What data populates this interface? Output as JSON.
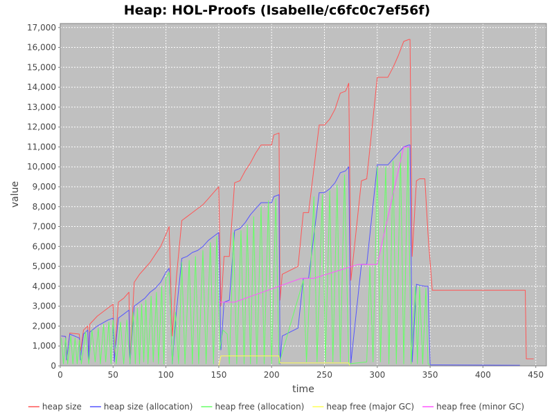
{
  "chart_data": {
    "type": "line",
    "title": "Heap: HOL-Proofs (Isabelle/c6fc0c7ef56f)",
    "xlabel": "time",
    "ylabel": "value",
    "xlim": [
      0,
      460
    ],
    "ylim": [
      0,
      17200
    ],
    "xticks": [
      0,
      50,
      100,
      150,
      200,
      250,
      300,
      350,
      400,
      450
    ],
    "xtick_labels": [
      "0",
      "50",
      "100",
      "150",
      "200",
      "250",
      "300",
      "350",
      "400",
      "450"
    ],
    "yticks": [
      0,
      1000,
      2000,
      3000,
      4000,
      5000,
      6000,
      7000,
      8000,
      9000,
      10000,
      11000,
      12000,
      13000,
      14000,
      15000,
      16000,
      17000
    ],
    "ytick_labels": [
      "0",
      "1,000",
      "2,000",
      "3,000",
      "4,000",
      "5,000",
      "6,000",
      "7,000",
      "8,000",
      "9,000",
      "10,000",
      "11,000",
      "12,000",
      "13,000",
      "14,000",
      "15,000",
      "16,000",
      "17,000"
    ],
    "grid": true,
    "legend_position": "bottom",
    "series": [
      {
        "name": "heap size",
        "color": "#ff5555",
        "points": [
          [
            1,
            1500
          ],
          [
            5,
            1480
          ],
          [
            6,
            300
          ],
          [
            9,
            1650
          ],
          [
            18,
            1600
          ],
          [
            19,
            700
          ],
          [
            22,
            1800
          ],
          [
            26,
            2000
          ],
          [
            27,
            300
          ],
          [
            28,
            2100
          ],
          [
            35,
            2500
          ],
          [
            45,
            2900
          ],
          [
            50,
            3100
          ],
          [
            51,
            200
          ],
          [
            55,
            3200
          ],
          [
            60,
            3400
          ],
          [
            65,
            3700
          ],
          [
            66,
            200
          ],
          [
            70,
            4200
          ],
          [
            75,
            4600
          ],
          [
            80,
            4900
          ],
          [
            85,
            5200
          ],
          [
            90,
            5600
          ],
          [
            95,
            6000
          ],
          [
            100,
            6600
          ],
          [
            103,
            7000
          ],
          [
            106,
            1500
          ],
          [
            110,
            4500
          ],
          [
            115,
            7300
          ],
          [
            120,
            7500
          ],
          [
            125,
            7700
          ],
          [
            130,
            7900
          ],
          [
            135,
            8100
          ],
          [
            140,
            8400
          ],
          [
            145,
            8700
          ],
          [
            150,
            9000
          ],
          [
            152,
            3000
          ],
          [
            155,
            5500
          ],
          [
            160,
            5500
          ],
          [
            165,
            9200
          ],
          [
            170,
            9300
          ],
          [
            175,
            9800
          ],
          [
            180,
            10200
          ],
          [
            185,
            10700
          ],
          [
            190,
            11100
          ],
          [
            200,
            11100
          ],
          [
            202,
            11600
          ],
          [
            207,
            11700
          ],
          [
            208,
            3300
          ],
          [
            210,
            4600
          ],
          [
            225,
            5000
          ],
          [
            230,
            7700
          ],
          [
            235,
            7700
          ],
          [
            245,
            12100
          ],
          [
            250,
            12100
          ],
          [
            255,
            12400
          ],
          [
            260,
            12900
          ],
          [
            265,
            13700
          ],
          [
            270,
            13800
          ],
          [
            273,
            14200
          ],
          [
            275,
            4300
          ],
          [
            285,
            9300
          ],
          [
            290,
            9400
          ],
          [
            300,
            14500
          ],
          [
            310,
            14500
          ],
          [
            315,
            15000
          ],
          [
            320,
            15600
          ],
          [
            325,
            16300
          ],
          [
            330,
            16400
          ],
          [
            331,
            16400
          ],
          [
            333,
            5500
          ],
          [
            337,
            9300
          ],
          [
            340,
            9400
          ],
          [
            345,
            9400
          ],
          [
            348,
            6600
          ],
          [
            352,
            3800
          ],
          [
            440,
            3800
          ],
          [
            441,
            350
          ],
          [
            448,
            350
          ]
        ]
      },
      {
        "name": "heap size (allocation)",
        "color": "#5555ff",
        "points": [
          [
            1,
            1500
          ],
          [
            5,
            1480
          ],
          [
            6,
            300
          ],
          [
            9,
            1600
          ],
          [
            18,
            1400
          ],
          [
            19,
            300
          ],
          [
            22,
            1600
          ],
          [
            26,
            1800
          ],
          [
            27,
            300
          ],
          [
            28,
            1700
          ],
          [
            35,
            2000
          ],
          [
            45,
            2300
          ],
          [
            50,
            2400
          ],
          [
            51,
            200
          ],
          [
            55,
            2400
          ],
          [
            60,
            2600
          ],
          [
            65,
            2800
          ],
          [
            66,
            100
          ],
          [
            70,
            3000
          ],
          [
            75,
            3200
          ],
          [
            80,
            3400
          ],
          [
            85,
            3700
          ],
          [
            90,
            3900
          ],
          [
            95,
            4200
          ],
          [
            100,
            4700
          ],
          [
            103,
            4900
          ],
          [
            106,
            100
          ],
          [
            110,
            2800
          ],
          [
            115,
            5400
          ],
          [
            120,
            5500
          ],
          [
            125,
            5700
          ],
          [
            130,
            5800
          ],
          [
            135,
            6000
          ],
          [
            140,
            6300
          ],
          [
            145,
            6500
          ],
          [
            150,
            6700
          ],
          [
            152,
            800
          ],
          [
            155,
            3200
          ],
          [
            160,
            3300
          ],
          [
            165,
            6800
          ],
          [
            170,
            6900
          ],
          [
            175,
            7200
          ],
          [
            180,
            7600
          ],
          [
            185,
            7900
          ],
          [
            190,
            8200
          ],
          [
            200,
            8200
          ],
          [
            202,
            8500
          ],
          [
            207,
            8600
          ],
          [
            208,
            100
          ],
          [
            210,
            1500
          ],
          [
            225,
            1900
          ],
          [
            230,
            4400
          ],
          [
            235,
            4400
          ],
          [
            245,
            8700
          ],
          [
            250,
            8700
          ],
          [
            255,
            8900
          ],
          [
            260,
            9200
          ],
          [
            265,
            9700
          ],
          [
            270,
            9800
          ],
          [
            273,
            10000
          ],
          [
            275,
            150
          ],
          [
            285,
            5100
          ],
          [
            290,
            5100
          ],
          [
            300,
            10100
          ],
          [
            310,
            10100
          ],
          [
            315,
            10400
          ],
          [
            320,
            10700
          ],
          [
            325,
            11000
          ],
          [
            330,
            11100
          ],
          [
            331,
            11100
          ],
          [
            333,
            200
          ],
          [
            337,
            4100
          ],
          [
            340,
            4050
          ],
          [
            345,
            4000
          ],
          [
            348,
            4000
          ],
          [
            350,
            50
          ],
          [
            432,
            30
          ],
          [
            435,
            30
          ]
        ]
      },
      {
        "name": "heap free (allocation)",
        "color": "#66ff66",
        "points": [
          [
            1,
            1400
          ],
          [
            3,
            100
          ],
          [
            5,
            1400
          ],
          [
            7,
            100
          ],
          [
            10,
            1500
          ],
          [
            12,
            100
          ],
          [
            14,
            1400
          ],
          [
            16,
            100
          ],
          [
            18,
            1300
          ],
          [
            20,
            100
          ],
          [
            24,
            1700
          ],
          [
            27,
            100
          ],
          [
            30,
            1800
          ],
          [
            33,
            200
          ],
          [
            36,
            1900
          ],
          [
            38,
            100
          ],
          [
            41,
            2100
          ],
          [
            43,
            200
          ],
          [
            46,
            2200
          ],
          [
            48,
            100
          ],
          [
            50,
            2300
          ],
          [
            53,
            100
          ],
          [
            57,
            2200
          ],
          [
            60,
            100
          ],
          [
            63,
            2300
          ],
          [
            66,
            100
          ],
          [
            69,
            2700
          ],
          [
            71,
            100
          ],
          [
            73,
            2900
          ],
          [
            75,
            100
          ],
          [
            77,
            3100
          ],
          [
            79,
            200
          ],
          [
            81,
            3300
          ],
          [
            83,
            100
          ],
          [
            86,
            3500
          ],
          [
            88,
            200
          ],
          [
            91,
            3700
          ],
          [
            93,
            100
          ],
          [
            96,
            4000
          ],
          [
            98,
            100
          ],
          [
            100,
            4400
          ],
          [
            103,
            4700
          ],
          [
            106,
            100
          ],
          [
            109,
            2700
          ],
          [
            112,
            100
          ],
          [
            115,
            5200
          ],
          [
            118,
            100
          ],
          [
            122,
            5300
          ],
          [
            125,
            100
          ],
          [
            128,
            5500
          ],
          [
            131,
            100
          ],
          [
            135,
            5800
          ],
          [
            138,
            100
          ],
          [
            142,
            6200
          ],
          [
            145,
            100
          ],
          [
            148,
            6500
          ],
          [
            151,
            800
          ],
          [
            154,
            1800
          ],
          [
            158,
            1600
          ],
          [
            160,
            100
          ],
          [
            164,
            6700
          ],
          [
            167,
            100
          ],
          [
            171,
            6800
          ],
          [
            174,
            100
          ],
          [
            177,
            7100
          ],
          [
            180,
            100
          ],
          [
            183,
            7500
          ],
          [
            186,
            100
          ],
          [
            190,
            8000
          ],
          [
            193,
            100
          ],
          [
            197,
            8300
          ],
          [
            200,
            100
          ],
          [
            204,
            8400
          ],
          [
            207,
            100
          ],
          [
            230,
            4300
          ],
          [
            233,
            200
          ],
          [
            240,
            8500
          ],
          [
            243,
            200
          ],
          [
            248,
            8600
          ],
          [
            251,
            200
          ],
          [
            255,
            8800
          ],
          [
            258,
            200
          ],
          [
            262,
            9100
          ],
          [
            265,
            200
          ],
          [
            269,
            9600
          ],
          [
            273,
            100
          ],
          [
            290,
            200
          ],
          [
            293,
            5000
          ],
          [
            296,
            200
          ],
          [
            300,
            10000
          ],
          [
            303,
            200
          ],
          [
            308,
            10000
          ],
          [
            311,
            100
          ],
          [
            315,
            10300
          ],
          [
            318,
            100
          ],
          [
            322,
            10700
          ],
          [
            325,
            100
          ],
          [
            329,
            11000
          ],
          [
            332,
            100
          ],
          [
            336,
            4000
          ],
          [
            338,
            100
          ],
          [
            340,
            4000
          ],
          [
            343,
            100
          ],
          [
            346,
            3900
          ],
          [
            348,
            100
          ],
          [
            350,
            50
          ]
        ]
      },
      {
        "name": "heap free (major GC)",
        "color": "#ffff55",
        "points": [
          [
            150,
            0
          ],
          [
            152,
            500
          ],
          [
            207,
            500
          ],
          [
            208,
            150
          ],
          [
            273,
            150
          ],
          [
            274,
            0
          ],
          [
            348,
            0
          ]
        ]
      },
      {
        "name": "heap free (minor GC)",
        "color": "#ff55ff",
        "points": [
          [
            150,
            3200
          ],
          [
            165,
            3200
          ],
          [
            228,
            4400
          ],
          [
            240,
            4400
          ],
          [
            282,
            5100
          ],
          [
            300,
            5100
          ],
          [
            325,
            11000
          ],
          [
            331,
            11000
          ]
        ]
      }
    ]
  }
}
